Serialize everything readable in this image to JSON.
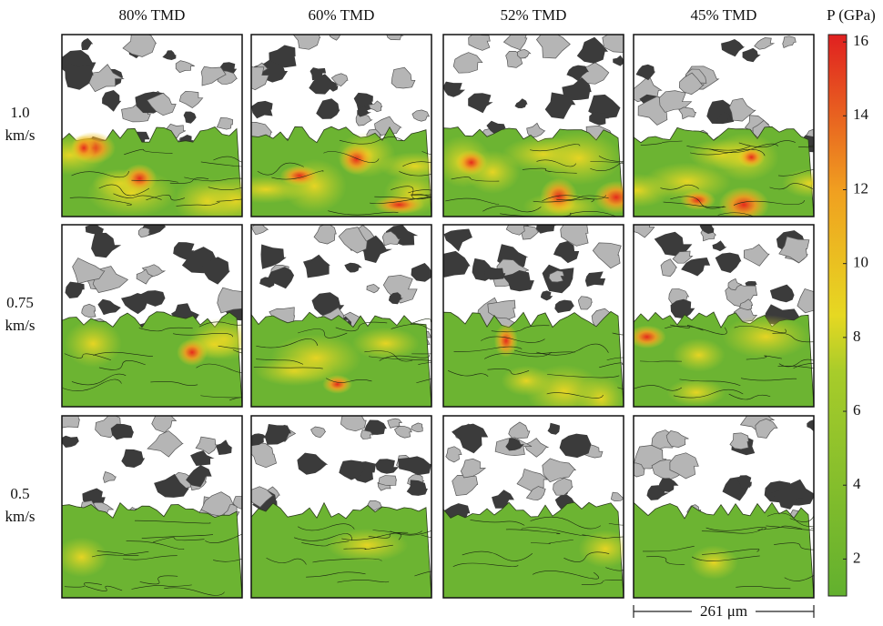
{
  "columns": [
    "80% TMD",
    "60% TMD",
    "52% TMD",
    "45% TMD"
  ],
  "rows": [
    {
      "speed": "1.0",
      "unit": "km/s"
    },
    {
      "speed": "0.75",
      "unit": "km/s"
    },
    {
      "speed": "0.5",
      "unit": "km/s"
    }
  ],
  "colorbar": {
    "label": "P (GPa)",
    "lim": [
      1,
      16.2
    ],
    "ticks": [
      2,
      4,
      6,
      8,
      10,
      12,
      14,
      16
    ]
  },
  "scale_bar": "261 μm"
}
